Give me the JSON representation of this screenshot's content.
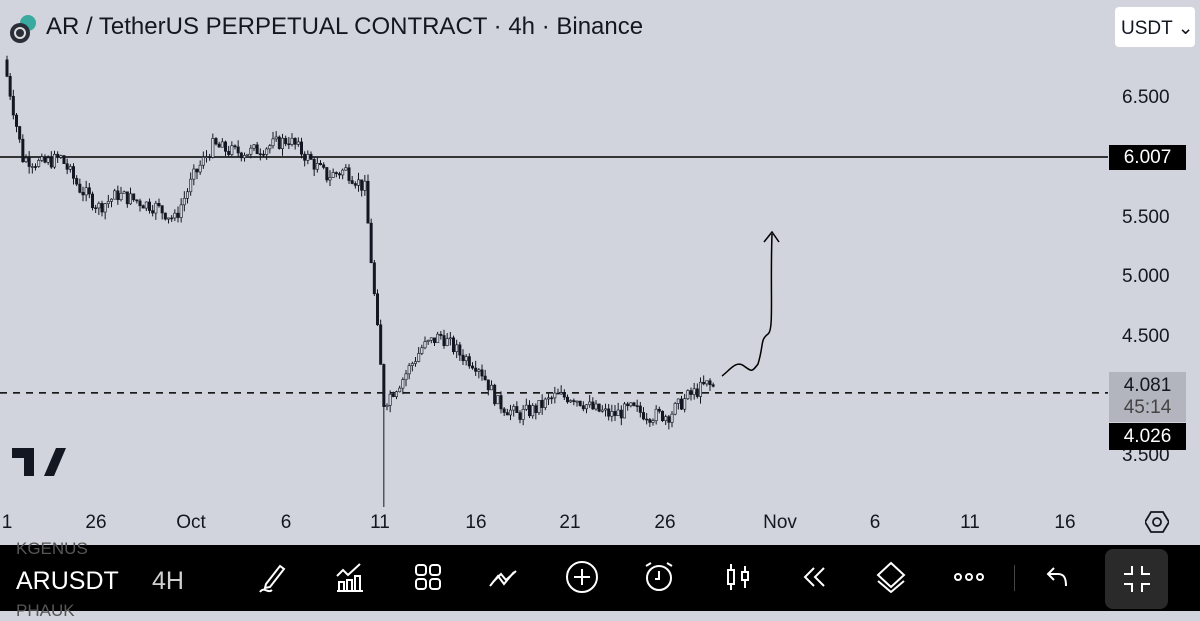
{
  "header": {
    "title": "AR / TetherUS PERPETUAL CONTRACT · 4h · Binance",
    "currency": "USDT"
  },
  "price_axis": {
    "ticks": [
      "6.500",
      "5.500",
      "5.000",
      "4.500",
      "3.500"
    ],
    "tick_values": [
      6.5,
      5.5,
      5.0,
      4.5,
      3.5
    ]
  },
  "time_axis": {
    "ticks": [
      "1",
      "26",
      "Oct",
      "6",
      "11",
      "16",
      "21",
      "26",
      "Nov",
      "6",
      "11",
      "16"
    ]
  },
  "labels": {
    "level": "6.007",
    "level_value": 6.007,
    "last_price": "4.081",
    "last_value": 4.081,
    "countdown": "45:14",
    "crosshair": "4.026"
  },
  "candles_daily_close": [
    6.8,
    6.0,
    5.95,
    6.0,
    5.75,
    5.6,
    5.7,
    5.65,
    5.6,
    5.5,
    5.85,
    6.1,
    6.05,
    6.05,
    6.1,
    6.15,
    6.0,
    5.85,
    5.9,
    5.75,
    4.0,
    4.2,
    4.45,
    4.55,
    4.4,
    4.3,
    4.0,
    3.9,
    3.95,
    4.05,
    4.05,
    3.95,
    3.9,
    3.95,
    3.9,
    3.9,
    4.05,
    4.15,
    4.081
  ],
  "colors": {
    "background": "#d1d4dc",
    "candle": "#131722",
    "line": "#000000"
  },
  "toolbar": {
    "symbol": "ARUSDT",
    "timeframe": "4H",
    "ghost_top": "KGENUS",
    "ghost_bottom": "PHAUK"
  }
}
